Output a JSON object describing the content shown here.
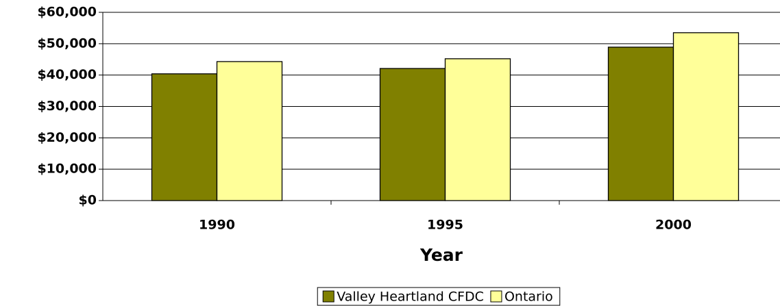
{
  "chart_data": {
    "type": "bar",
    "xlabel": "Year",
    "categories": [
      "1990",
      "1995",
      "2000"
    ],
    "series": [
      {
        "name": "Valley Heartland CFDC",
        "color": "#808000",
        "values": [
          40400,
          42100,
          48900
        ]
      },
      {
        "name": "Ontario",
        "color": "#ffff99",
        "values": [
          44300,
          45200,
          53500
        ]
      }
    ],
    "ylim": [
      0,
      60000
    ],
    "yticks": [
      {
        "value": 0,
        "label": "$0"
      },
      {
        "value": 10000,
        "label": "$10,000"
      },
      {
        "value": 20000,
        "label": "$20,000"
      },
      {
        "value": 30000,
        "label": "$30,000"
      },
      {
        "value": 40000,
        "label": "$40,000"
      },
      {
        "value": 50000,
        "label": "$50,000"
      },
      {
        "value": 60000,
        "label": "$60,000"
      }
    ],
    "grid": true,
    "legend": "bottom"
  }
}
